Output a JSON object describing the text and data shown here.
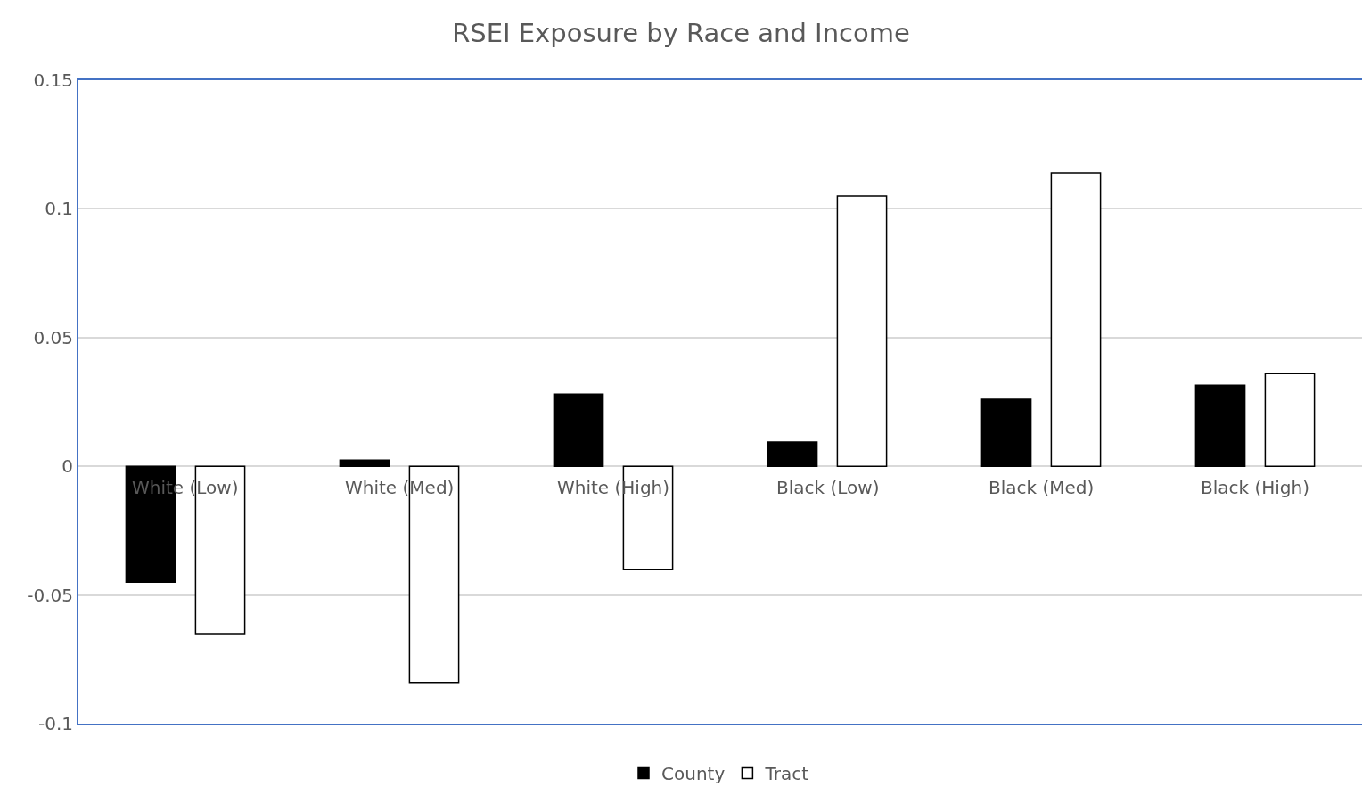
{
  "chart_data": {
    "type": "bar",
    "title": "RSEI Exposure by Race and Income",
    "categories": [
      "White (Low)",
      "White (Med)",
      "White (High)",
      "Black (Low)",
      "Black (Med)",
      "Black (High)"
    ],
    "series": [
      {
        "name": "County",
        "color": "#000000",
        "values": [
          -0.045,
          0.0024,
          0.028,
          0.0094,
          0.026,
          0.0315
        ]
      },
      {
        "name": "Tract",
        "color": "#ffffff",
        "values": [
          -0.065,
          -0.084,
          -0.04,
          0.105,
          0.114,
          0.036
        ]
      }
    ],
    "ylim": [
      -0.1,
      0.15
    ],
    "yticks": [
      -0.1,
      -0.05,
      0,
      0.05,
      0.1,
      0.15
    ],
    "grid": "y",
    "legend": "bottom"
  }
}
